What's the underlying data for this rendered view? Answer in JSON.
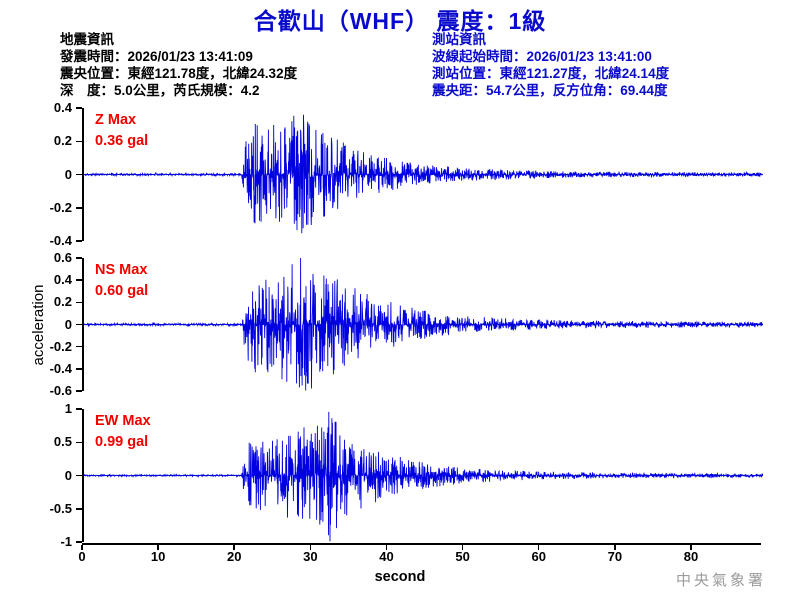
{
  "title": "合歡山（WHF） 震度：1級",
  "event_info": {
    "heading": "地震資訊",
    "lines": [
      "發震時間：2026/01/23 13:41:09",
      "震央位置：東經121.78度，北緯24.32度",
      "深　度：5.0公里，芮氏規模：4.2"
    ]
  },
  "station_info": {
    "heading": "測站資訊",
    "lines": [
      "波線起始時間：2026/01/23 13:41:00",
      "測站位置：東經121.27度，北緯24.14度",
      "震央距：54.7公里，反方位角：69.44度"
    ]
  },
  "y_axis_label": "acceleration",
  "watermark": "中央氣象署",
  "colors": {
    "heading_blue": "#0a0acc",
    "trace_blue": "#0000e0",
    "max_label_red": "#f20000",
    "watermark_gray": "#9b9b9b",
    "text_black": "#000000"
  },
  "x_axis": {
    "label": "second",
    "tick_labels": [
      "0",
      "10",
      "20",
      "30",
      "40",
      "50",
      "60",
      "70",
      "80"
    ],
    "tick_values": [
      0,
      10,
      20,
      30,
      40,
      50,
      60,
      70,
      80
    ],
    "max_seconds": 89.2
  },
  "chart_data": [
    {
      "type": "line",
      "component": "Z",
      "label": "Z Max",
      "max_label": "0.36 gal",
      "max_gal": 0.36,
      "units": "gal",
      "ylim": [
        -0.4,
        0.4
      ],
      "ytick_labels": [
        "0.4",
        "0.2",
        "0",
        "-0.2",
        "-0.4"
      ],
      "ytick_values": [
        0.4,
        0.2,
        0,
        -0.2,
        -0.4
      ],
      "onset_seconds": 21,
      "peak_seconds": 28.5,
      "envelope_t_frac": [
        [
          0,
          0.018
        ],
        [
          20.7,
          0.018
        ],
        [
          21.2,
          0.5
        ],
        [
          22.5,
          0.8
        ],
        [
          25,
          0.8
        ],
        [
          27,
          0.9
        ],
        [
          28.5,
          1.0
        ],
        [
          30,
          0.8
        ],
        [
          32,
          0.62
        ],
        [
          34,
          0.5
        ],
        [
          36,
          0.4
        ],
        [
          38,
          0.32
        ],
        [
          40,
          0.26
        ],
        [
          43,
          0.19
        ],
        [
          46,
          0.14
        ],
        [
          50,
          0.1
        ],
        [
          54,
          0.08
        ],
        [
          58,
          0.065
        ],
        [
          63,
          0.05
        ],
        [
          70,
          0.042
        ],
        [
          80,
          0.035
        ],
        [
          89,
          0.03
        ]
      ]
    },
    {
      "type": "line",
      "component": "NS",
      "label": "NS Max",
      "max_label": "0.60 gal",
      "max_gal": 0.6,
      "units": "gal",
      "ylim": [
        -0.6,
        0.6
      ],
      "ytick_labels": [
        "0.6",
        "0.4",
        "0.2",
        "0",
        "-0.2",
        "-0.4",
        "-0.6"
      ],
      "ytick_values": [
        0.6,
        0.4,
        0.2,
        0,
        -0.2,
        -0.4,
        -0.6
      ],
      "onset_seconds": 21,
      "peak_seconds": 29,
      "envelope_t_frac": [
        [
          0,
          0.015
        ],
        [
          20.7,
          0.015
        ],
        [
          21.2,
          0.55
        ],
        [
          22.5,
          0.75
        ],
        [
          25,
          0.72
        ],
        [
          27,
          0.8
        ],
        [
          29,
          1.0
        ],
        [
          30.5,
          0.82
        ],
        [
          32,
          0.75
        ],
        [
          34,
          0.58
        ],
        [
          36,
          0.48
        ],
        [
          38,
          0.4
        ],
        [
          40,
          0.33
        ],
        [
          43,
          0.24
        ],
        [
          46,
          0.17
        ],
        [
          50,
          0.12
        ],
        [
          54,
          0.095
        ],
        [
          58,
          0.075
        ],
        [
          63,
          0.06
        ],
        [
          70,
          0.05
        ],
        [
          80,
          0.042
        ],
        [
          89,
          0.038
        ]
      ]
    },
    {
      "type": "line",
      "component": "EW",
      "label": "EW Max",
      "max_label": "0.99 gal",
      "max_gal": 0.99,
      "units": "gal",
      "ylim": [
        -1,
        1
      ],
      "ytick_labels": [
        "1",
        "0.5",
        "0",
        "-0.5",
        "-1"
      ],
      "ytick_values": [
        1,
        0.5,
        0,
        -0.5,
        -1
      ],
      "onset_seconds": 21,
      "peak_seconds": 32.3,
      "envelope_t_frac": [
        [
          0,
          0.012
        ],
        [
          20.7,
          0.012
        ],
        [
          21.2,
          0.45
        ],
        [
          22.5,
          0.58
        ],
        [
          25,
          0.55
        ],
        [
          27,
          0.68
        ],
        [
          29,
          0.78
        ],
        [
          31,
          0.9
        ],
        [
          32.3,
          1.0
        ],
        [
          34,
          0.65
        ],
        [
          36,
          0.52
        ],
        [
          38,
          0.42
        ],
        [
          40,
          0.34
        ],
        [
          42,
          0.27
        ],
        [
          44,
          0.22
        ],
        [
          47,
          0.16
        ],
        [
          50,
          0.12
        ],
        [
          54,
          0.09
        ],
        [
          58,
          0.07
        ],
        [
          63,
          0.055
        ],
        [
          70,
          0.042
        ],
        [
          80,
          0.033
        ],
        [
          89,
          0.028
        ]
      ]
    }
  ]
}
